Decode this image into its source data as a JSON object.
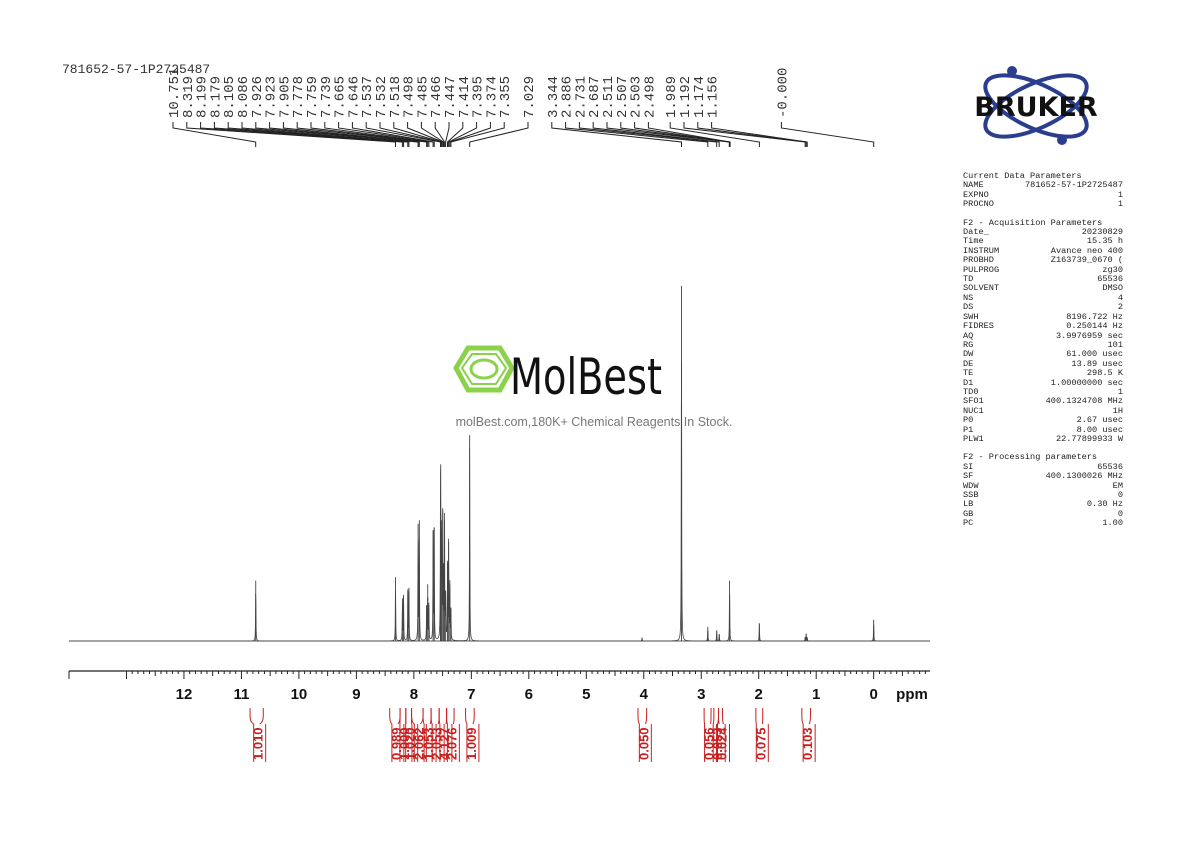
{
  "sample_name": "781652-57-1P2725487",
  "peak_labels": [
    "10.751",
    "8.319",
    "8.199",
    "8.179",
    "8.105",
    "8.086",
    "7.926",
    "7.923",
    "7.905",
    "7.778",
    "7.759",
    "7.739",
    "7.665",
    "7.646",
    "7.537",
    "7.532",
    "7.518",
    "7.498",
    "7.485",
    "7.466",
    "7.447",
    "7.414",
    "7.395",
    "7.374",
    "7.355",
    "7.029",
    "3.344",
    "2.886",
    "2.731",
    "2.687",
    "2.511",
    "2.507",
    "2.503",
    "2.498",
    "1.989",
    "1.192",
    "1.174",
    "1.156",
    "-0.000"
  ],
  "integrals": [
    {
      "value": "1.010",
      "from": 10.85,
      "to": 10.62
    },
    {
      "value": "0.989",
      "from": 8.42,
      "to": 8.24
    },
    {
      "value": "1.000",
      "from": 8.24,
      "to": 8.14
    },
    {
      "value": "1.020",
      "from": 8.14,
      "to": 8.04
    },
    {
      "value": "2.062",
      "from": 8.04,
      "to": 7.84
    },
    {
      "value": "1.053",
      "from": 7.84,
      "to": 7.7
    },
    {
      "value": "2.053",
      "from": 7.7,
      "to": 7.56
    },
    {
      "value": "4.127",
      "from": 7.56,
      "to": 7.43
    },
    {
      "value": "2.076",
      "from": 7.43,
      "to": 7.3
    },
    {
      "value": "1.009",
      "from": 7.1,
      "to": 6.95
    },
    {
      "value": "0.050",
      "from": 4.1,
      "to": 3.95
    },
    {
      "value": "0.056",
      "from": 2.95,
      "to": 2.83
    },
    {
      "value": "0.053",
      "from": 2.78,
      "to": 2.7
    },
    {
      "value": "0.024",
      "from": 2.7,
      "to": 2.63
    },
    {
      "value": "0.075",
      "from": 2.05,
      "to": 1.93
    },
    {
      "value": "0.103",
      "from": 1.25,
      "to": 1.1
    }
  ],
  "watermark": {
    "brand": "MolBest",
    "tagline": "molBest.com,180K+ Chemical Reagents In Stock."
  },
  "logo_text": "BRUKER",
  "params": {
    "current": {
      "title": "Current Data Parameters",
      "rows": [
        [
          "NAME",
          "781652-57-1P2725487"
        ],
        [
          "EXPNO",
          "1"
        ],
        [
          "PROCNO",
          "1"
        ]
      ]
    },
    "acq": {
      "title": "F2 - Acquisition Parameters",
      "rows": [
        [
          "Date_",
          "20230829"
        ],
        [
          "Time",
          "15.35 h"
        ],
        [
          "INSTRUM",
          "Avance neo 400"
        ],
        [
          "PROBHD",
          "Z163739_0670 ("
        ],
        [
          "PULPROG",
          "zg30"
        ],
        [
          "TD",
          "65536"
        ],
        [
          "SOLVENT",
          "DMSO"
        ],
        [
          "NS",
          "4"
        ],
        [
          "DS",
          "2"
        ],
        [
          "SWH",
          "8196.722 Hz"
        ],
        [
          "FIDRES",
          "0.250144 Hz"
        ],
        [
          "AQ",
          "3.9976959 sec"
        ],
        [
          "RG",
          "101"
        ],
        [
          "DW",
          "61.000 usec"
        ],
        [
          "DE",
          "13.89 usec"
        ],
        [
          "TE",
          "298.5 K"
        ],
        [
          "D1",
          "1.00000000 sec"
        ],
        [
          "TD0",
          "1"
        ],
        [
          "SFO1",
          "400.1324708 MHz"
        ],
        [
          "NUC1",
          "1H"
        ],
        [
          "P0",
          "2.67 usec"
        ],
        [
          "P1",
          "8.00 usec"
        ],
        [
          "PLW1",
          "22.77899933 W"
        ]
      ]
    },
    "proc": {
      "title": "F2 - Processing parameters",
      "rows": [
        [
          "SI",
          "65536"
        ],
        [
          "SF",
          "400.1300026 MHz"
        ],
        [
          "WDW",
          "EM"
        ],
        [
          "SSB",
          "0"
        ],
        [
          "LB",
          "0.30 Hz"
        ],
        [
          "GB",
          "0"
        ],
        [
          "PC",
          "1.00"
        ]
      ]
    }
  },
  "chart_data": {
    "type": "line",
    "title": "781652-57-1P2725487",
    "xlabel": "ppm",
    "xlim": [
      14.0,
      -1.0
    ],
    "x_reversed": true,
    "ticks": [
      12,
      11,
      10,
      9,
      8,
      7,
      6,
      5,
      4,
      3,
      2,
      1,
      0
    ],
    "peaks": [
      {
        "ppm": 10.751,
        "intensity": 0.17
      },
      {
        "ppm": 8.319,
        "intensity": 0.18
      },
      {
        "ppm": 8.199,
        "intensity": 0.12
      },
      {
        "ppm": 8.179,
        "intensity": 0.13
      },
      {
        "ppm": 8.105,
        "intensity": 0.14
      },
      {
        "ppm": 8.086,
        "intensity": 0.15
      },
      {
        "ppm": 7.926,
        "intensity": 0.33
      },
      {
        "ppm": 7.905,
        "intensity": 0.34
      },
      {
        "ppm": 7.778,
        "intensity": 0.1
      },
      {
        "ppm": 7.759,
        "intensity": 0.16
      },
      {
        "ppm": 7.739,
        "intensity": 0.1
      },
      {
        "ppm": 7.665,
        "intensity": 0.31
      },
      {
        "ppm": 7.646,
        "intensity": 0.32
      },
      {
        "ppm": 7.537,
        "intensity": 0.33
      },
      {
        "ppm": 7.532,
        "intensity": 0.36
      },
      {
        "ppm": 7.518,
        "intensity": 0.31
      },
      {
        "ppm": 7.498,
        "intensity": 0.37
      },
      {
        "ppm": 7.485,
        "intensity": 0.2
      },
      {
        "ppm": 7.466,
        "intensity": 0.34
      },
      {
        "ppm": 7.447,
        "intensity": 0.14
      },
      {
        "ppm": 7.414,
        "intensity": 0.22
      },
      {
        "ppm": 7.395,
        "intensity": 0.28
      },
      {
        "ppm": 7.374,
        "intensity": 0.16
      },
      {
        "ppm": 7.355,
        "intensity": 0.09
      },
      {
        "ppm": 7.029,
        "intensity": 0.58
      },
      {
        "ppm": 4.03,
        "intensity": 0.01
      },
      {
        "ppm": 3.344,
        "intensity": 1.0
      },
      {
        "ppm": 2.886,
        "intensity": 0.04
      },
      {
        "ppm": 2.731,
        "intensity": 0.03
      },
      {
        "ppm": 2.687,
        "intensity": 0.02
      },
      {
        "ppm": 2.507,
        "intensity": 0.17
      },
      {
        "ppm": 1.989,
        "intensity": 0.05
      },
      {
        "ppm": 1.192,
        "intensity": 0.01
      },
      {
        "ppm": 1.174,
        "intensity": 0.02
      },
      {
        "ppm": 1.156,
        "intensity": 0.01
      },
      {
        "ppm": -0.0,
        "intensity": 0.06
      }
    ]
  }
}
